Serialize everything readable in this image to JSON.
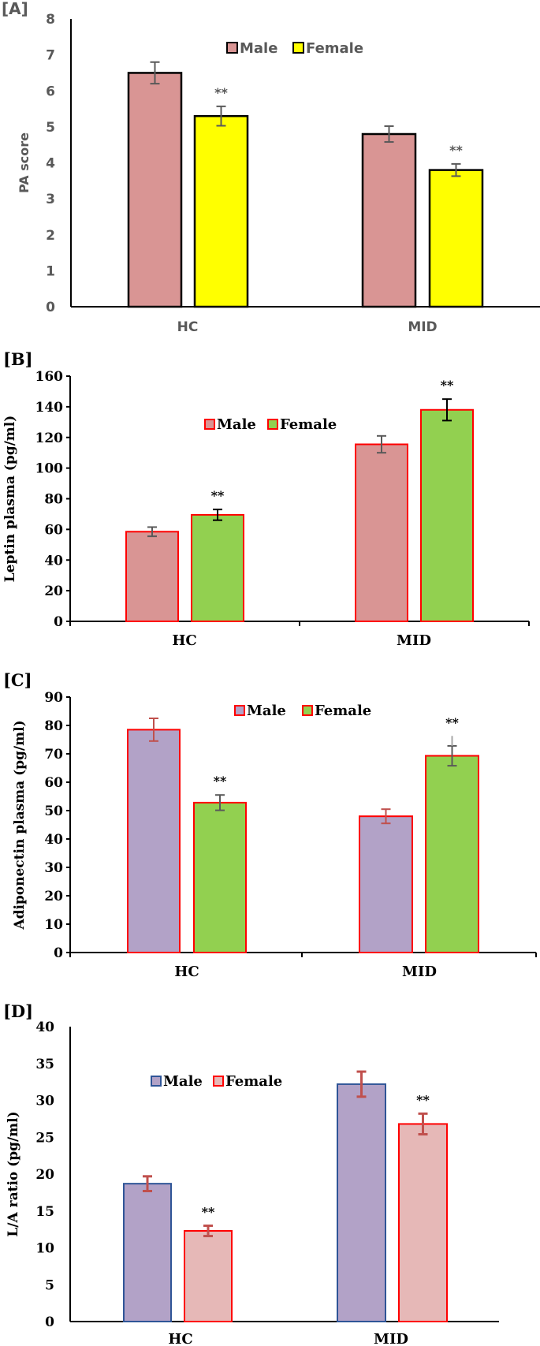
{
  "chart_data": [
    {
      "panel_label": "[A]",
      "type": "bar",
      "title": "",
      "xlabel": "",
      "ylabel": "PA score",
      "categories": [
        "HC",
        "MID"
      ],
      "ylim": [
        0,
        8
      ],
      "yticks": [
        0,
        1,
        2,
        3,
        4,
        5,
        6,
        7,
        8
      ],
      "legend": {
        "placement": "top-center",
        "entries": [
          "Male",
          "Female"
        ]
      },
      "grid": false,
      "series": [
        {
          "name": "Male",
          "values": [
            6.5,
            4.8
          ],
          "errors": [
            0.3,
            0.22
          ],
          "fill": "#d99594",
          "stroke": "#000000"
        },
        {
          "name": "Female",
          "values": [
            5.3,
            3.8
          ],
          "errors": [
            0.27,
            0.17
          ],
          "fill": "#ffff00",
          "stroke": "#000000"
        }
      ],
      "annotations": [
        {
          "category": "HC",
          "series": "Female",
          "text": "**"
        },
        {
          "category": "MID",
          "series": "Female",
          "text": "**"
        }
      ],
      "text_color": "#595959",
      "error_color": "#595959"
    },
    {
      "panel_label": "[B]",
      "type": "bar",
      "title": "",
      "xlabel": "",
      "ylabel": "Leptin plasma (pg/ml)",
      "categories": [
        "HC",
        "MID"
      ],
      "ylim": [
        0,
        160
      ],
      "yticks": [
        0,
        20,
        40,
        60,
        80,
        100,
        120,
        140,
        160
      ],
      "legend": {
        "placement": "top-center",
        "entries": [
          "Male",
          "Female"
        ]
      },
      "grid": false,
      "series": [
        {
          "name": "Male",
          "values": [
            58.5,
            115.5
          ],
          "errors": [
            3,
            5.5
          ],
          "fill": "#d99594",
          "stroke": "#ff0000",
          "error_color": "#595959"
        },
        {
          "name": "Female",
          "values": [
            69.5,
            138
          ],
          "errors": [
            3.5,
            7
          ],
          "fill": "#92d050",
          "stroke": "#ff0000",
          "error_color": "#000000"
        }
      ],
      "annotations": [
        {
          "category": "HC",
          "series": "Female",
          "text": "**"
        },
        {
          "category": "MID",
          "series": "Female",
          "text": "**"
        }
      ],
      "text_color": "#000000"
    },
    {
      "panel_label": "[C]",
      "type": "bar",
      "title": "",
      "xlabel": "",
      "ylabel": "Adiponectin plasma (pg/ml)",
      "categories": [
        "HC",
        "MID"
      ],
      "ylim": [
        0,
        90
      ],
      "yticks": [
        0,
        10,
        20,
        30,
        40,
        50,
        60,
        70,
        80,
        90
      ],
      "legend": {
        "placement": "top-right",
        "entries": [
          "Male",
          "Female"
        ]
      },
      "grid": false,
      "series": [
        {
          "name": "Male",
          "values": [
            78.5,
            48
          ],
          "errors": [
            4,
            2.5
          ],
          "fill": "#b2a2c7",
          "stroke": "#ff0000",
          "error_color": "#c0504d"
        },
        {
          "name": "Female",
          "values": [
            52.8,
            69.3
          ],
          "errors": [
            2.7,
            3.5
          ],
          "fill": "#92d050",
          "stroke": "#ff0000",
          "error_color": "#595959"
        }
      ],
      "annotations": [
        {
          "category": "HC",
          "series": "Female",
          "text": "**"
        },
        {
          "category": "MID",
          "series": "Female",
          "text": "**"
        }
      ],
      "text_color": "#000000"
    },
    {
      "panel_label": "[D]",
      "type": "bar",
      "title": "",
      "xlabel": "",
      "ylabel": "L/A ratio (pg/ml)",
      "categories": [
        "HC",
        "MID"
      ],
      "ylim": [
        0,
        40
      ],
      "yticks": [
        0,
        5,
        10,
        15,
        20,
        25,
        30,
        35,
        40
      ],
      "legend": {
        "placement": "top-left",
        "entries": [
          "Male",
          "Female"
        ]
      },
      "grid": false,
      "series": [
        {
          "name": "Male",
          "values": [
            18.7,
            32.2
          ],
          "errors": [
            1,
            1.7
          ],
          "fill": "#b2a2c7",
          "stroke": "#2f5597",
          "error_color": "#c0504d"
        },
        {
          "name": "Female",
          "values": [
            12.3,
            26.8
          ],
          "errors": [
            0.7,
            1.4
          ],
          "fill": "#e6b8b7",
          "stroke": "#ff0000",
          "error_color": "#c0504d"
        }
      ],
      "annotations": [
        {
          "category": "HC",
          "series": "Female",
          "text": "**"
        },
        {
          "category": "MID",
          "series": "Female",
          "text": "**"
        }
      ],
      "text_color": "#000000"
    }
  ]
}
